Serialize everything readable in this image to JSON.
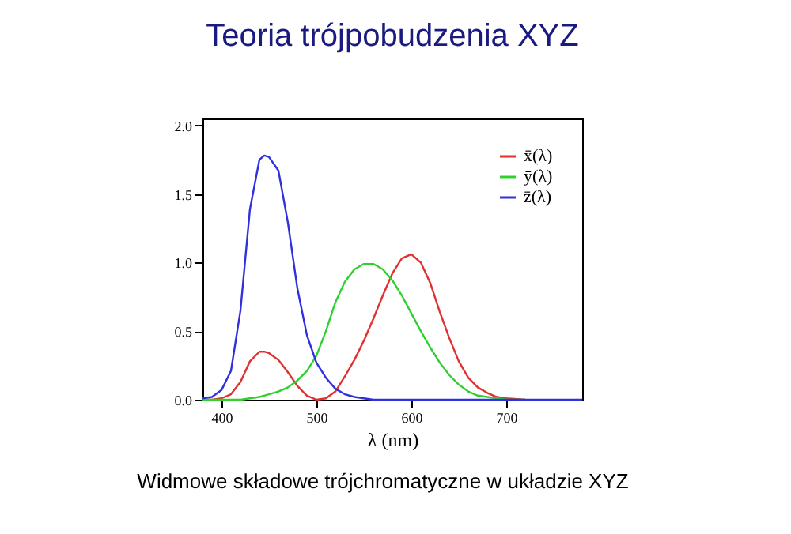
{
  "chart_data": {
    "type": "line",
    "title": "Teoria trójpobudzenia XYZ",
    "xlabel": "λ (nm)",
    "annotations": [
      "Widmowe składowe trójchromatyczne w układzie XYZ"
    ],
    "x": [
      380,
      390,
      400,
      410,
      420,
      430,
      440,
      445,
      450,
      460,
      470,
      480,
      490,
      500,
      510,
      520,
      530,
      540,
      550,
      560,
      570,
      580,
      590,
      600,
      610,
      620,
      630,
      640,
      650,
      660,
      670,
      680,
      690,
      700,
      720,
      740,
      780
    ],
    "series": [
      {
        "name": "x̄(λ)",
        "color": "#e03030",
        "values": [
          0.0,
          0.0,
          0.01,
          0.04,
          0.13,
          0.28,
          0.35,
          0.35,
          0.34,
          0.29,
          0.2,
          0.1,
          0.03,
          0.0,
          0.01,
          0.06,
          0.17,
          0.29,
          0.43,
          0.59,
          0.76,
          0.92,
          1.03,
          1.06,
          1.0,
          0.85,
          0.64,
          0.45,
          0.28,
          0.16,
          0.09,
          0.05,
          0.02,
          0.01,
          0.0,
          null,
          null
        ]
      },
      {
        "name": "ȳ(λ)",
        "color": "#30d030",
        "values": [
          0.0,
          0.0,
          0.0,
          0.0,
          0.0,
          0.01,
          0.02,
          0.03,
          0.04,
          0.06,
          0.09,
          0.14,
          0.21,
          0.32,
          0.5,
          0.71,
          0.86,
          0.95,
          0.99,
          0.99,
          0.95,
          0.87,
          0.76,
          0.63,
          0.5,
          0.38,
          0.27,
          0.18,
          0.11,
          0.06,
          0.03,
          0.02,
          0.01,
          0.0,
          0.0,
          null,
          null
        ]
      },
      {
        "name": "z̄(λ)",
        "color": "#3030e0",
        "values": [
          0.01,
          0.02,
          0.07,
          0.21,
          0.65,
          1.39,
          1.75,
          1.78,
          1.77,
          1.67,
          1.29,
          0.81,
          0.47,
          0.27,
          0.16,
          0.08,
          0.04,
          0.02,
          0.01,
          0.0,
          0.0,
          0.0,
          0.0,
          0.0,
          0.0,
          0.0,
          0.0,
          0.0,
          0.0,
          0.0,
          0.0,
          0.0,
          0.0,
          0.0,
          0.0,
          0.0,
          0.0
        ]
      }
    ],
    "xlim": [
      380,
      780
    ],
    "xticks": [
      400,
      500,
      600,
      700
    ],
    "ylim": [
      0,
      2.05
    ],
    "yticks": [
      {
        "value": 0,
        "label": "0.0"
      },
      0.5,
      {
        "value": 1,
        "label": "1.0"
      },
      1.5,
      {
        "value": 2,
        "label": "2.0"
      }
    ],
    "grid": false,
    "legend": "top right",
    "marker": "none",
    "line_style": "solid"
  }
}
